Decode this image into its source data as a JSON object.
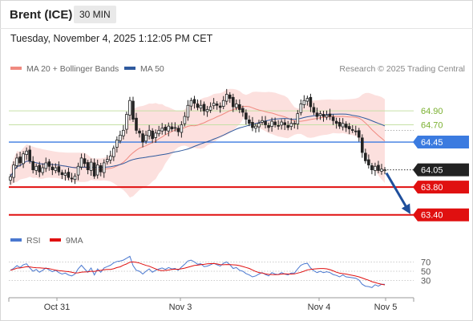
{
  "header": {
    "instrument": "Brent (ICE)",
    "timeframe": "30 MIN"
  },
  "datetime": "Tuesday, November 4, 2025 1:12:05 PM CET",
  "legend": {
    "ma20": {
      "label": "MA 20 + Bollinger Bands",
      "color": "#f08a80"
    },
    "ma50": {
      "label": "MA 50",
      "color": "#2f5a9e"
    },
    "credit": "Research © 2025 Trading Central"
  },
  "rsi_legend": {
    "rsi": {
      "label": "RSI",
      "color": "#4a78d0"
    },
    "ma9": {
      "label": "9MA",
      "color": "#e01010"
    }
  },
  "chart_data": {
    "type": "candlestick",
    "instrument": "Brent (ICE)",
    "interval": "30 MIN",
    "x_labels": [
      "Oct 31",
      "Nov 3",
      "Nov 4",
      "Nov 5"
    ],
    "ylim": [
      63.2,
      65.4
    ],
    "levels": [
      {
        "value": 64.9,
        "label": "64.90",
        "kind": "resistance",
        "color": "#7ab030"
      },
      {
        "value": 64.7,
        "label": "64.70",
        "kind": "resistance",
        "color": "#7ab030"
      },
      {
        "value": 64.45,
        "label": "64.45",
        "kind": "pivot",
        "color": "#3b7be0"
      },
      {
        "value": 64.05,
        "label": "64.05",
        "kind": "last-price",
        "color": "#222222"
      },
      {
        "value": 63.8,
        "label": "63.80",
        "kind": "target",
        "color": "#e01010"
      },
      {
        "value": 63.4,
        "label": "63.40",
        "kind": "target",
        "color": "#e01010"
      }
    ],
    "forecast": {
      "from": 64.05,
      "to": 63.4,
      "direction": "down"
    },
    "last_price": 64.05,
    "close": [
      63.95,
      64.12,
      64.22,
      64.15,
      64.28,
      64.32,
      64.18,
      64.05,
      64.1,
      64.02,
      64.08,
      64.15,
      64.1,
      64.05,
      64.08,
      64.02,
      63.98,
      64.0,
      63.94,
      63.92,
      63.96,
      64.1,
      64.22,
      64.14,
      64.05,
      64.16,
      63.96,
      64.12,
      64.02,
      64.15,
      64.2,
      64.25,
      64.36,
      64.48,
      64.55,
      64.62,
      64.85,
      65.05,
      64.78,
      64.62,
      64.58,
      64.45,
      64.55,
      64.62,
      64.5,
      64.58,
      64.62,
      64.65,
      64.62,
      64.68,
      64.64,
      64.66,
      64.6,
      64.7,
      64.82,
      64.98,
      65.05,
      65.01,
      64.95,
      64.98,
      64.9,
      64.92,
      64.96,
      65.01,
      64.98,
      64.95,
      65.05,
      65.14,
      65.08,
      64.96,
      65.0,
      64.92,
      64.88,
      64.78,
      64.72,
      64.66,
      64.68,
      64.72,
      64.76,
      64.7,
      64.66,
      64.75,
      64.7,
      64.68,
      64.74,
      64.7,
      64.66,
      64.72,
      64.72,
      64.86,
      65.0,
      65.05,
      65.08,
      64.96,
      64.88,
      64.82,
      64.86,
      64.82,
      64.84,
      64.82,
      64.76,
      64.72,
      64.68,
      64.72,
      64.66,
      64.64,
      64.62,
      64.6,
      64.52,
      64.3,
      64.18,
      64.12,
      64.05,
      64.1,
      64.04,
      64.06,
      64.05
    ],
    "rsi": [
      52,
      56,
      62,
      58,
      64,
      66,
      57,
      50,
      54,
      48,
      52,
      57,
      53,
      49,
      52,
      47,
      44,
      46,
      42,
      40,
      44,
      55,
      63,
      55,
      48,
      57,
      42,
      55,
      48,
      57,
      60,
      63,
      68,
      71,
      72,
      74,
      78,
      82,
      62,
      52,
      50,
      44,
      50,
      55,
      48,
      52,
      55,
      57,
      54,
      58,
      55,
      56,
      52,
      59,
      65,
      72,
      74,
      70,
      65,
      66,
      60,
      61,
      64,
      67,
      64,
      61,
      67,
      70,
      64,
      56,
      58,
      52,
      50,
      45,
      42,
      38,
      40,
      44,
      47,
      43,
      40,
      47,
      44,
      43,
      47,
      44,
      42,
      46,
      46,
      55,
      63,
      66,
      67,
      57,
      51,
      47,
      50,
      47,
      49,
      47,
      43,
      41,
      38,
      42,
      38,
      37,
      36,
      35,
      31,
      22,
      18,
      17,
      15,
      21,
      18,
      22,
      22
    ],
    "rsi_levels": [
      70,
      50,
      30
    ]
  },
  "axes": {
    "x": [
      "Oct 31",
      "Nov 3",
      "Nov 4",
      "Nov 5"
    ],
    "rsi": [
      "70",
      "50",
      "30"
    ]
  }
}
